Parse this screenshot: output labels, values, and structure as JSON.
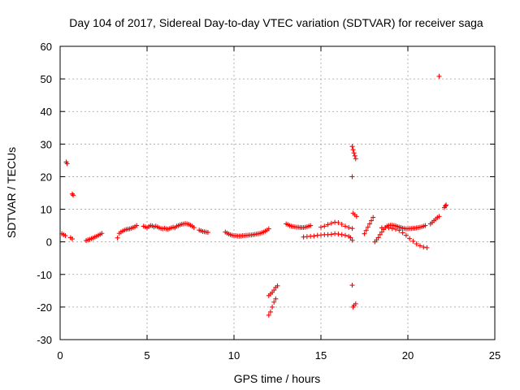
{
  "chart_data": {
    "type": "scatter",
    "title": "Day 104 of 2017, Sidereal Day-to-day VTEC variation (SDTVAR) for receiver saga",
    "xlabel": "GPS time / hours",
    "ylabel": "SDTVAR / TECUs",
    "xlim": [
      0,
      25
    ],
    "ylim": [
      -30,
      60
    ],
    "xticks": [
      "0",
      "5",
      "10",
      "15",
      "20",
      "25"
    ],
    "yticks": [
      "-30",
      "-20",
      "-10",
      "0",
      "10",
      "20",
      "30",
      "40",
      "50",
      "60"
    ],
    "grid": true,
    "marker": "+",
    "color": "#ff0000",
    "series": [
      {
        "name": "SDTVAR",
        "points": [
          [
            0.1,
            2.5
          ],
          [
            0.2,
            2.2
          ],
          [
            0.3,
            1.9
          ],
          [
            0.35,
            24.5
          ],
          [
            0.4,
            24.0
          ],
          [
            0.6,
            1.3
          ],
          [
            0.7,
            0.9
          ],
          [
            0.7,
            14.7
          ],
          [
            0.75,
            14.3
          ],
          [
            1.5,
            0.4
          ],
          [
            1.6,
            0.6
          ],
          [
            1.7,
            0.8
          ],
          [
            1.8,
            1.0
          ],
          [
            1.9,
            1.2
          ],
          [
            2.0,
            1.5
          ],
          [
            2.1,
            1.7
          ],
          [
            2.2,
            2.0
          ],
          [
            2.3,
            2.3
          ],
          [
            2.4,
            2.6
          ],
          [
            3.3,
            1.2
          ],
          [
            3.4,
            2.6
          ],
          [
            3.5,
            3.0
          ],
          [
            3.6,
            3.3
          ],
          [
            3.7,
            3.6
          ],
          [
            3.8,
            3.8
          ],
          [
            3.9,
            3.9
          ],
          [
            4.0,
            4.0
          ],
          [
            4.1,
            4.2
          ],
          [
            4.2,
            4.4
          ],
          [
            4.3,
            4.6
          ],
          [
            4.4,
            5.0
          ],
          [
            4.8,
            4.8
          ],
          [
            4.9,
            4.6
          ],
          [
            5.0,
            4.3
          ],
          [
            5.1,
            4.7
          ],
          [
            5.2,
            5.0
          ],
          [
            5.3,
            4.9
          ],
          [
            5.4,
            4.6
          ],
          [
            5.5,
            4.8
          ],
          [
            5.6,
            4.6
          ],
          [
            5.7,
            4.3
          ],
          [
            5.8,
            4.1
          ],
          [
            5.9,
            4.0
          ],
          [
            6.0,
            4.2
          ],
          [
            6.1,
            4.0
          ],
          [
            6.2,
            3.9
          ],
          [
            6.3,
            4.1
          ],
          [
            6.4,
            4.3
          ],
          [
            6.5,
            4.5
          ],
          [
            6.6,
            4.3
          ],
          [
            6.7,
            4.8
          ],
          [
            6.8,
            5.0
          ],
          [
            6.9,
            5.2
          ],
          [
            7.0,
            5.4
          ],
          [
            7.1,
            5.5
          ],
          [
            7.2,
            5.6
          ],
          [
            7.3,
            5.5
          ],
          [
            7.4,
            5.4
          ],
          [
            7.5,
            5.1
          ],
          [
            7.6,
            4.8
          ],
          [
            7.7,
            4.4
          ],
          [
            8.0,
            3.6
          ],
          [
            8.1,
            3.4
          ],
          [
            8.2,
            3.2
          ],
          [
            8.3,
            3.1
          ],
          [
            8.4,
            3.0
          ],
          [
            8.5,
            2.9
          ],
          [
            9.5,
            3.0
          ],
          [
            9.6,
            2.7
          ],
          [
            9.7,
            2.4
          ],
          [
            9.8,
            2.2
          ],
          [
            9.9,
            2.0
          ],
          [
            10.0,
            1.9
          ],
          [
            10.1,
            1.9
          ],
          [
            10.2,
            1.8
          ],
          [
            10.3,
            1.8
          ],
          [
            10.4,
            1.8
          ],
          [
            10.5,
            1.9
          ],
          [
            10.6,
            1.9
          ],
          [
            10.7,
            2.0
          ],
          [
            10.8,
            2.0
          ],
          [
            10.9,
            2.1
          ],
          [
            11.0,
            2.1
          ],
          [
            11.1,
            2.2
          ],
          [
            11.2,
            2.3
          ],
          [
            11.3,
            2.4
          ],
          [
            11.4,
            2.5
          ],
          [
            11.5,
            2.6
          ],
          [
            11.6,
            2.8
          ],
          [
            11.7,
            3.0
          ],
          [
            11.8,
            3.3
          ],
          [
            11.9,
            3.6
          ],
          [
            12.0,
            4.0
          ],
          [
            12.0,
            -16.5
          ],
          [
            12.1,
            -16.0
          ],
          [
            12.2,
            -15.5
          ],
          [
            12.3,
            -14.8
          ],
          [
            12.4,
            -14.0
          ],
          [
            12.5,
            -13.5
          ],
          [
            12.0,
            -22.5
          ],
          [
            12.1,
            -21.5
          ],
          [
            12.2,
            -20.0
          ],
          [
            12.3,
            -18.5
          ],
          [
            12.4,
            -17.5
          ],
          [
            13.0,
            5.5
          ],
          [
            13.1,
            5.3
          ],
          [
            13.2,
            5.0
          ],
          [
            13.3,
            4.8
          ],
          [
            13.4,
            4.7
          ],
          [
            13.5,
            4.6
          ],
          [
            13.6,
            4.5
          ],
          [
            13.7,
            4.5
          ],
          [
            13.8,
            4.4
          ],
          [
            13.9,
            4.4
          ],
          [
            14.0,
            4.4
          ],
          [
            14.1,
            4.5
          ],
          [
            14.2,
            4.6
          ],
          [
            14.3,
            4.8
          ],
          [
            14.4,
            5.0
          ],
          [
            14.0,
            1.5
          ],
          [
            14.2,
            1.6
          ],
          [
            14.4,
            1.7
          ],
          [
            14.6,
            1.8
          ],
          [
            14.8,
            2.0
          ],
          [
            15.0,
            2.1
          ],
          [
            15.2,
            2.2
          ],
          [
            15.4,
            2.2
          ],
          [
            15.6,
            2.3
          ],
          [
            15.8,
            2.5
          ],
          [
            16.0,
            2.4
          ],
          [
            16.2,
            2.2
          ],
          [
            16.4,
            2.0
          ],
          [
            16.6,
            1.7
          ],
          [
            16.7,
            1.3
          ],
          [
            16.8,
            0.5
          ],
          [
            15.0,
            4.5
          ],
          [
            15.2,
            4.8
          ],
          [
            15.4,
            5.3
          ],
          [
            15.6,
            5.7
          ],
          [
            15.8,
            6.0
          ],
          [
            16.0,
            5.9
          ],
          [
            16.2,
            5.4
          ],
          [
            16.4,
            4.8
          ],
          [
            16.6,
            4.4
          ],
          [
            16.8,
            4.1
          ],
          [
            16.8,
            29.3
          ],
          [
            16.85,
            28.3
          ],
          [
            16.9,
            27.3
          ],
          [
            16.95,
            26.4
          ],
          [
            17.0,
            25.5
          ],
          [
            16.8,
            20.0
          ],
          [
            16.8,
            -13.3
          ],
          [
            16.85,
            -20.0
          ],
          [
            16.9,
            -19.5
          ],
          [
            17.0,
            -19.0
          ],
          [
            16.85,
            8.8
          ],
          [
            16.95,
            8.3
          ],
          [
            17.05,
            7.8
          ],
          [
            17.5,
            2.5
          ],
          [
            17.6,
            3.5
          ],
          [
            17.7,
            4.5
          ],
          [
            17.8,
            5.5
          ],
          [
            17.9,
            6.5
          ],
          [
            18.0,
            7.5
          ],
          [
            18.1,
            0.0
          ],
          [
            18.2,
            0.6
          ],
          [
            18.3,
            1.3
          ],
          [
            18.4,
            2.2
          ],
          [
            18.5,
            3.0
          ],
          [
            18.6,
            3.8
          ],
          [
            18.7,
            4.4
          ],
          [
            18.8,
            4.8
          ],
          [
            18.9,
            5.0
          ],
          [
            19.0,
            5.1
          ],
          [
            19.1,
            5.1
          ],
          [
            19.2,
            5.0
          ],
          [
            19.3,
            4.9
          ],
          [
            19.4,
            4.7
          ],
          [
            19.5,
            4.5
          ],
          [
            19.6,
            4.4
          ],
          [
            19.7,
            4.2
          ],
          [
            19.8,
            4.1
          ],
          [
            19.9,
            4.0
          ],
          [
            20.0,
            4.0
          ],
          [
            20.1,
            4.1
          ],
          [
            20.2,
            4.1
          ],
          [
            20.3,
            4.2
          ],
          [
            20.4,
            4.2
          ],
          [
            20.5,
            4.3
          ],
          [
            20.6,
            4.4
          ],
          [
            20.7,
            4.5
          ],
          [
            20.8,
            4.6
          ],
          [
            20.9,
            4.8
          ],
          [
            21.0,
            5.0
          ],
          [
            18.5,
            4.3
          ],
          [
            18.7,
            4.4
          ],
          [
            18.9,
            4.3
          ],
          [
            19.1,
            4.1
          ],
          [
            19.3,
            3.9
          ],
          [
            19.5,
            3.5
          ],
          [
            19.7,
            2.8
          ],
          [
            19.9,
            2.0
          ],
          [
            20.1,
            1.0
          ],
          [
            20.3,
            0.2
          ],
          [
            20.5,
            -0.6
          ],
          [
            20.7,
            -1.2
          ],
          [
            20.9,
            -1.6
          ],
          [
            21.1,
            -1.8
          ],
          [
            21.3,
            5.5
          ],
          [
            21.4,
            6.0
          ],
          [
            21.5,
            6.5
          ],
          [
            21.6,
            7.0
          ],
          [
            21.7,
            7.5
          ],
          [
            21.8,
            7.8
          ],
          [
            21.8,
            50.8
          ],
          [
            22.1,
            10.5
          ],
          [
            22.15,
            11.0
          ],
          [
            22.2,
            11.3
          ]
        ]
      }
    ]
  }
}
